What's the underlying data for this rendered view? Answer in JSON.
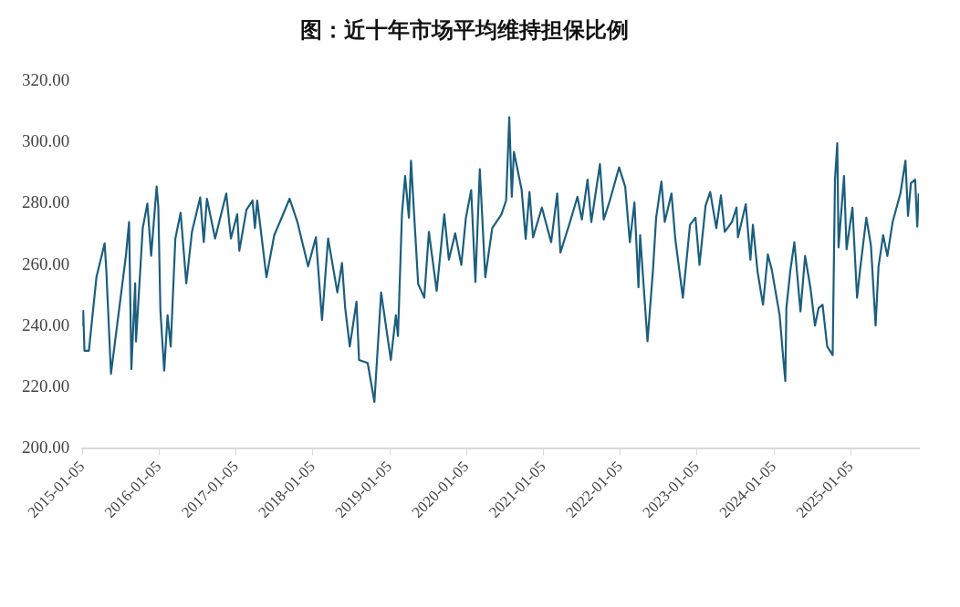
{
  "chart_data": {
    "type": "line",
    "title": "图：近十年市场平均维持担保比例",
    "x": [
      "2015-01-05",
      "2015-01-09",
      "2015-01-15",
      "2015-02-05",
      "2015-03-13",
      "2015-04-21",
      "2015-04-29",
      "2015-05-21",
      "2015-07-31",
      "2015-08-15",
      "2015-08-26",
      "2015-09-13",
      "2015-09-17",
      "2015-10-19",
      "2015-11-10",
      "2015-11-28",
      "2015-12-24",
      "2016-01-01",
      "2016-01-11",
      "2016-01-29",
      "2016-02-14",
      "2016-02-29",
      "2016-03-22",
      "2016-04-16",
      "2016-05-13",
      "2016-06-09",
      "2016-07-18",
      "2016-08-04",
      "2016-08-19",
      "2016-09-27",
      "2016-11-19",
      "2016-12-11",
      "2017-01-10",
      "2017-01-20",
      "2017-02-23",
      "2017-03-24",
      "2017-04-04",
      "2017-04-15",
      "2017-05-29",
      "2017-07-05",
      "2017-08-10",
      "2017-09-16",
      "2017-10-23",
      "2017-12-13",
      "2018-01-19",
      "2018-02-17",
      "2018-03-18",
      "2018-05-01",
      "2018-05-23",
      "2018-06-07",
      "2018-06-29",
      "2018-07-31",
      "2018-08-12",
      "2018-09-22",
      "2018-10-24",
      "2018-11-25",
      "2019-01-10",
      "2019-02-03",
      "2019-02-13",
      "2019-03-04",
      "2019-03-19",
      "2019-04-06",
      "2019-04-16",
      "2019-05-20",
      "2019-06-18",
      "2019-07-10",
      "2019-08-16",
      "2019-09-21",
      "2019-10-13",
      "2019-11-12",
      "2019-12-11",
      "2020-01-02",
      "2020-01-27",
      "2020-02-16",
      "2020-03-08",
      "2020-04-03",
      "2020-05-06",
      "2020-06-19",
      "2020-07-11",
      "2020-07-26",
      "2020-08-07",
      "2020-08-17",
      "2020-09-23",
      "2020-10-12",
      "2020-10-30",
      "2020-11-16",
      "2020-12-28",
      "2021-02-10",
      "2021-03-11",
      "2021-03-26",
      "2021-05-09",
      "2021-06-15",
      "2021-07-06",
      "2021-08-02",
      "2021-08-20",
      "2021-09-30",
      "2021-10-18",
      "2021-11-16",
      "2021-12-30",
      "2022-01-28",
      "2022-02-19",
      "2022-03-13",
      "2022-04-01",
      "2022-04-09",
      "2022-05-14",
      "2022-06-09",
      "2022-06-24",
      "2022-07-19",
      "2022-08-04",
      "2022-09-05",
      "2022-09-23",
      "2022-10-29",
      "2022-12-02",
      "2022-12-28",
      "2023-01-16",
      "2023-02-14",
      "2023-03-08",
      "2023-04-06",
      "2023-04-28",
      "2023-05-16",
      "2023-06-19",
      "2023-07-11",
      "2023-07-18",
      "2023-08-24",
      "2023-09-15",
      "2023-09-27",
      "2023-10-19",
      "2023-11-14",
      "2023-12-07",
      "2023-12-26",
      "2024-02-01",
      "2024-02-16",
      "2024-02-28",
      "2024-03-04",
      "2024-03-23",
      "2024-04-11",
      "2024-05-10",
      "2024-06-01",
      "2024-06-26",
      "2024-07-18",
      "2024-08-04",
      "2024-08-23",
      "2024-09-14",
      "2024-10-10",
      "2024-10-21",
      "2024-11-01",
      "2024-11-07",
      "2024-12-03",
      "2024-12-15",
      "2025-01-12",
      "2025-02-03",
      "2025-02-17",
      "2025-03-19",
      "2025-04-10",
      "2025-05-02",
      "2025-05-16",
      "2025-06-07",
      "2025-06-27",
      "2025-07-22",
      "2025-08-28",
      "2025-09-21",
      "2025-10-03",
      "2025-10-17",
      "2025-11-06",
      "2025-11-16",
      "2025-11-23"
    ],
    "values": [
      240,
      245,
      232,
      232,
      256,
      267,
      258,
      224.5,
      263,
      274,
      226,
      254,
      235,
      272,
      280,
      263,
      285.6,
      279,
      245,
      225.5,
      243.6,
      233.4,
      268.6,
      277,
      254,
      270.8,
      282,
      267.4,
      281.6,
      268.6,
      283.3,
      268.6,
      276.5,
      264.6,
      278,
      281,
      272,
      281,
      256,
      269.7,
      275.5,
      281.6,
      274,
      259.5,
      269,
      242,
      268.6,
      251,
      260.6,
      246,
      233.4,
      248,
      229,
      228,
      215.3,
      251,
      229,
      243.6,
      236.8,
      276.5,
      289,
      275.4,
      294,
      253.8,
      249.3,
      270.8,
      251.5,
      276.5,
      261.7,
      270.3,
      260,
      275.4,
      284.4,
      254.4,
      291.2,
      256,
      272,
      276.5,
      281,
      308.2,
      282.2,
      296.9,
      284.4,
      268.5,
      283.8,
      269,
      278.7,
      267.4,
      283.3,
      264,
      273.6,
      282.2,
      274.8,
      287.8,
      274,
      292.9,
      274.8,
      281,
      291.8,
      285.5,
      267.4,
      280.4,
      252.7,
      269.7,
      235.1,
      258.3,
      275.4,
      287.2,
      274,
      283.3,
      268.5,
      249.3,
      273.1,
      275.4,
      260,
      279.3,
      283.8,
      272,
      282.7,
      270.8,
      274,
      278.7,
      269,
      279.8,
      261.7,
      273.1,
      257.8,
      247,
      263.4,
      258.3,
      243.6,
      231.2,
      222.1,
      245.9,
      258.3,
      267.4,
      244.8,
      262.9,
      252.7,
      240.2,
      245.9,
      247,
      233.4,
      230.6,
      287.8,
      299.7,
      265.7,
      289,
      265.1,
      278.7,
      249.3,
      258.3,
      275.4,
      266.3,
      240.2,
      259.5,
      269.7,
      262.9,
      274,
      283.3,
      294,
      276,
      286.7,
      287.8,
      272.5,
      283.3
    ],
    "color": "#1b5e7f",
    "xlim": [
      "2015-01-05",
      "2025-11-24"
    ],
    "xticks": [
      "2015-01-05",
      "2016-01-05",
      "2017-01-05",
      "2018-01-05",
      "2019-01-05",
      "2020-01-05",
      "2021-01-05",
      "2022-01-05",
      "2023-01-05",
      "2024-01-05",
      "2025-01-05"
    ],
    "ylim": [
      200,
      320
    ],
    "yticks": [
      {
        "value": 200,
        "label": "200.00"
      },
      {
        "value": 220,
        "label": "220.00"
      },
      {
        "value": 240,
        "label": "240.00"
      },
      {
        "value": 260,
        "label": "260.00"
      },
      {
        "value": 280,
        "label": "280.00"
      },
      {
        "value": 300,
        "label": "300.00"
      },
      {
        "value": 320,
        "label": "320.00"
      }
    ]
  }
}
